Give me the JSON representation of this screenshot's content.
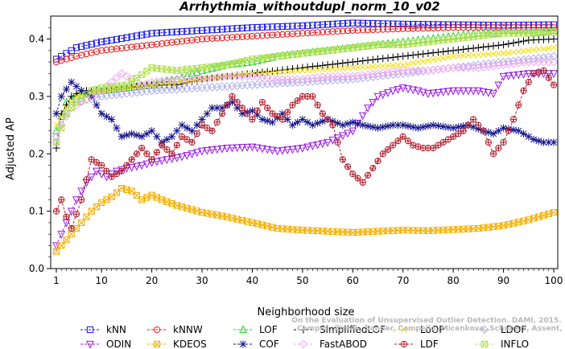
{
  "chart_data": {
    "type": "line",
    "title": "Arrhythmia_withoutdupl_norm_10_v02",
    "xlabel": "Neighborhood size",
    "ylabel": "Adjusted AP",
    "xlim": [
      1,
      100
    ],
    "ylim": [
      0,
      0.44
    ],
    "xticks": [
      "1",
      "10",
      "20",
      "30",
      "40",
      "50",
      "60",
      "70",
      "80",
      "90",
      "100"
    ],
    "yticks": [
      "0.0",
      "0.1",
      "0.2",
      "0.3",
      "0.4"
    ],
    "grid": false,
    "legend_position": "bottom",
    "watermark": {
      "line1": "Campos, Zimek, Sander, Campello, Micenkova, Schubert, Assent, Houle",
      "line2": "On the Evaluation of Unsupervised Outlier Detection. DAMI, 2015."
    },
    "series": [
      {
        "name": "kNN",
        "color": "#1a1ae6",
        "marker": "square",
        "points": [
          [
            1,
            0.365
          ],
          [
            2,
            0.37
          ],
          [
            5,
            0.385
          ],
          [
            10,
            0.395
          ],
          [
            20,
            0.41
          ],
          [
            30,
            0.415
          ],
          [
            40,
            0.42
          ],
          [
            50,
            0.423
          ],
          [
            60,
            0.428
          ],
          [
            70,
            0.426
          ],
          [
            80,
            0.425
          ],
          [
            90,
            0.424
          ],
          [
            100,
            0.425
          ]
        ]
      },
      {
        "name": "kNNW",
        "color": "#e61a1a",
        "marker": "circle",
        "points": [
          [
            1,
            0.36
          ],
          [
            3,
            0.365
          ],
          [
            5,
            0.37
          ],
          [
            10,
            0.38
          ],
          [
            20,
            0.39
          ],
          [
            30,
            0.4
          ],
          [
            40,
            0.405
          ],
          [
            50,
            0.41
          ],
          [
            60,
            0.415
          ],
          [
            70,
            0.418
          ],
          [
            80,
            0.42
          ],
          [
            90,
            0.42
          ],
          [
            100,
            0.42
          ]
        ]
      },
      {
        "name": "LOF",
        "color": "#2ed12e",
        "marker": "triangle",
        "points": [
          [
            1,
            0.24
          ],
          [
            3,
            0.29
          ],
          [
            5,
            0.3
          ],
          [
            10,
            0.31
          ],
          [
            15,
            0.315
          ],
          [
            20,
            0.32
          ],
          [
            25,
            0.33
          ],
          [
            30,
            0.345
          ],
          [
            35,
            0.355
          ],
          [
            40,
            0.36
          ],
          [
            45,
            0.37
          ],
          [
            50,
            0.375
          ],
          [
            55,
            0.38
          ],
          [
            60,
            0.385
          ],
          [
            65,
            0.39
          ],
          [
            70,
            0.395
          ],
          [
            75,
            0.4
          ],
          [
            80,
            0.405
          ],
          [
            85,
            0.41
          ],
          [
            90,
            0.41
          ],
          [
            95,
            0.41
          ],
          [
            100,
            0.415
          ]
        ]
      },
      {
        "name": "SimplifiedLOF",
        "color": "#000000",
        "marker": "plus",
        "points": [
          [
            1,
            0.21
          ],
          [
            2,
            0.27
          ],
          [
            4,
            0.3
          ],
          [
            6,
            0.31
          ],
          [
            10,
            0.31
          ],
          [
            15,
            0.315
          ],
          [
            20,
            0.32
          ],
          [
            25,
            0.32
          ],
          [
            30,
            0.33
          ],
          [
            35,
            0.335
          ],
          [
            40,
            0.34
          ],
          [
            45,
            0.345
          ],
          [
            50,
            0.35
          ],
          [
            55,
            0.355
          ],
          [
            60,
            0.36
          ],
          [
            65,
            0.365
          ],
          [
            70,
            0.37
          ],
          [
            75,
            0.375
          ],
          [
            80,
            0.38
          ],
          [
            85,
            0.385
          ],
          [
            90,
            0.39
          ],
          [
            95,
            0.398
          ],
          [
            100,
            0.4
          ]
        ]
      },
      {
        "name": "LoOP",
        "color": "#f5e010",
        "marker": "cross",
        "points": [
          [
            1,
            0.25
          ],
          [
            3,
            0.28
          ],
          [
            5,
            0.3
          ],
          [
            10,
            0.31
          ],
          [
            20,
            0.32
          ],
          [
            30,
            0.33
          ],
          [
            40,
            0.34
          ],
          [
            50,
            0.345
          ],
          [
            60,
            0.35
          ],
          [
            70,
            0.355
          ],
          [
            80,
            0.37
          ],
          [
            90,
            0.375
          ],
          [
            100,
            0.385
          ]
        ]
      },
      {
        "name": "LDOF",
        "color": "#b0b0ee",
        "marker": "diamond",
        "points": [
          [
            1,
            0.23
          ],
          [
            3,
            0.27
          ],
          [
            5,
            0.29
          ],
          [
            10,
            0.3
          ],
          [
            20,
            0.31
          ],
          [
            30,
            0.315
          ],
          [
            40,
            0.32
          ],
          [
            50,
            0.325
          ],
          [
            60,
            0.33
          ],
          [
            70,
            0.34
          ],
          [
            80,
            0.35
          ],
          [
            90,
            0.36
          ],
          [
            100,
            0.37
          ]
        ]
      },
      {
        "name": "ODIN",
        "color": "#9a1ae6",
        "marker": "triangle-down",
        "points": [
          [
            1,
            0.04
          ],
          [
            2,
            0.06
          ],
          [
            3,
            0.08
          ],
          [
            5,
            0.12
          ],
          [
            7,
            0.15
          ],
          [
            9,
            0.17
          ],
          [
            11,
            0.16
          ],
          [
            13,
            0.17
          ],
          [
            15,
            0.175
          ],
          [
            18,
            0.18
          ],
          [
            20,
            0.185
          ],
          [
            23,
            0.19
          ],
          [
            26,
            0.195
          ],
          [
            30,
            0.205
          ],
          [
            35,
            0.21
          ],
          [
            40,
            0.212
          ],
          [
            45,
            0.205
          ],
          [
            50,
            0.21
          ],
          [
            55,
            0.22
          ],
          [
            60,
            0.24
          ],
          [
            63,
            0.28
          ],
          [
            65,
            0.3
          ],
          [
            68,
            0.31
          ],
          [
            70,
            0.315
          ],
          [
            73,
            0.31
          ],
          [
            75,
            0.305
          ],
          [
            80,
            0.31
          ],
          [
            85,
            0.31
          ],
          [
            88,
            0.305
          ],
          [
            90,
            0.335
          ],
          [
            95,
            0.34
          ],
          [
            100,
            0.34
          ]
        ]
      },
      {
        "name": "KDEOS",
        "color": "#f5b000",
        "marker": "square-x",
        "points": [
          [
            1,
            0.03
          ],
          [
            2,
            0.04
          ],
          [
            4,
            0.06
          ],
          [
            6,
            0.08
          ],
          [
            8,
            0.1
          ],
          [
            10,
            0.115
          ],
          [
            12,
            0.125
          ],
          [
            14,
            0.14
          ],
          [
            16,
            0.135
          ],
          [
            18,
            0.12
          ],
          [
            20,
            0.128
          ],
          [
            22,
            0.12
          ],
          [
            25,
            0.11
          ],
          [
            30,
            0.098
          ],
          [
            35,
            0.09
          ],
          [
            40,
            0.08
          ],
          [
            45,
            0.07
          ],
          [
            50,
            0.067
          ],
          [
            55,
            0.065
          ],
          [
            60,
            0.063
          ],
          [
            65,
            0.065
          ],
          [
            70,
            0.067
          ],
          [
            75,
            0.066
          ],
          [
            80,
            0.068
          ],
          [
            85,
            0.07
          ],
          [
            90,
            0.075
          ],
          [
            95,
            0.085
          ],
          [
            100,
            0.098
          ]
        ]
      },
      {
        "name": "COF",
        "color": "#14148c",
        "marker": "star",
        "points": [
          [
            1,
            0.27
          ],
          [
            2,
            0.3
          ],
          [
            4,
            0.325
          ],
          [
            6,
            0.31
          ],
          [
            8,
            0.3
          ],
          [
            10,
            0.27
          ],
          [
            12,
            0.26
          ],
          [
            14,
            0.23
          ],
          [
            16,
            0.235
          ],
          [
            18,
            0.23
          ],
          [
            20,
            0.24
          ],
          [
            22,
            0.22
          ],
          [
            24,
            0.23
          ],
          [
            26,
            0.25
          ],
          [
            28,
            0.24
          ],
          [
            30,
            0.26
          ],
          [
            32,
            0.28
          ],
          [
            34,
            0.28
          ],
          [
            36,
            0.29
          ],
          [
            38,
            0.27
          ],
          [
            40,
            0.275
          ],
          [
            42,
            0.26
          ],
          [
            44,
            0.255
          ],
          [
            46,
            0.27
          ],
          [
            48,
            0.25
          ],
          [
            50,
            0.26
          ],
          [
            52,
            0.25
          ],
          [
            55,
            0.26
          ],
          [
            58,
            0.25
          ],
          [
            60,
            0.255
          ],
          [
            62,
            0.25
          ],
          [
            65,
            0.245
          ],
          [
            68,
            0.25
          ],
          [
            70,
            0.25
          ],
          [
            73,
            0.245
          ],
          [
            76,
            0.25
          ],
          [
            80,
            0.245
          ],
          [
            83,
            0.25
          ],
          [
            86,
            0.24
          ],
          [
            88,
            0.235
          ],
          [
            90,
            0.245
          ],
          [
            93,
            0.24
          ],
          [
            96,
            0.225
          ],
          [
            98,
            0.22
          ],
          [
            100,
            0.22
          ]
        ]
      },
      {
        "name": "FastABOD",
        "color": "#f0a8f0",
        "marker": "diamond",
        "points": [
          [
            1,
            0.22
          ],
          [
            2,
            0.25
          ],
          [
            4,
            0.28
          ],
          [
            6,
            0.29
          ],
          [
            8,
            0.3
          ],
          [
            10,
            0.31
          ],
          [
            12,
            0.325
          ],
          [
            14,
            0.34
          ],
          [
            16,
            0.33
          ],
          [
            18,
            0.32
          ],
          [
            20,
            0.325
          ],
          [
            25,
            0.33
          ],
          [
            30,
            0.33
          ],
          [
            35,
            0.335
          ],
          [
            40,
            0.335
          ],
          [
            45,
            0.33
          ],
          [
            50,
            0.33
          ],
          [
            55,
            0.335
          ],
          [
            60,
            0.335
          ],
          [
            65,
            0.34
          ],
          [
            70,
            0.345
          ],
          [
            75,
            0.345
          ],
          [
            80,
            0.35
          ],
          [
            85,
            0.35
          ],
          [
            90,
            0.355
          ],
          [
            95,
            0.36
          ],
          [
            100,
            0.36
          ]
        ]
      },
      {
        "name": "LDF",
        "color": "#b01c2c",
        "marker": "circle-plus",
        "points": [
          [
            1,
            0.1
          ],
          [
            2,
            0.12
          ],
          [
            3,
            0.09
          ],
          [
            4,
            0.07
          ],
          [
            6,
            0.12
          ],
          [
            8,
            0.19
          ],
          [
            10,
            0.18
          ],
          [
            12,
            0.16
          ],
          [
            14,
            0.17
          ],
          [
            16,
            0.19
          ],
          [
            18,
            0.21
          ],
          [
            20,
            0.19
          ],
          [
            22,
            0.215
          ],
          [
            24,
            0.2
          ],
          [
            26,
            0.23
          ],
          [
            28,
            0.22
          ],
          [
            30,
            0.25
          ],
          [
            32,
            0.24
          ],
          [
            34,
            0.27
          ],
          [
            36,
            0.3
          ],
          [
            38,
            0.28
          ],
          [
            40,
            0.26
          ],
          [
            42,
            0.29
          ],
          [
            44,
            0.27
          ],
          [
            46,
            0.26
          ],
          [
            48,
            0.285
          ],
          [
            50,
            0.3
          ],
          [
            52,
            0.3
          ],
          [
            54,
            0.27
          ],
          [
            56,
            0.25
          ],
          [
            58,
            0.19
          ],
          [
            60,
            0.165
          ],
          [
            62,
            0.15
          ],
          [
            64,
            0.175
          ],
          [
            66,
            0.2
          ],
          [
            68,
            0.215
          ],
          [
            70,
            0.23
          ],
          [
            72,
            0.215
          ],
          [
            74,
            0.21
          ],
          [
            76,
            0.21
          ],
          [
            78,
            0.22
          ],
          [
            80,
            0.23
          ],
          [
            82,
            0.24
          ],
          [
            84,
            0.26
          ],
          [
            86,
            0.24
          ],
          [
            88,
            0.2
          ],
          [
            90,
            0.22
          ],
          [
            92,
            0.26
          ],
          [
            94,
            0.31
          ],
          [
            96,
            0.34
          ],
          [
            98,
            0.345
          ],
          [
            100,
            0.32
          ]
        ]
      },
      {
        "name": "INFLO",
        "color": "#b0e050",
        "marker": "square-x",
        "points": [
          [
            1,
            0.22
          ],
          [
            3,
            0.27
          ],
          [
            5,
            0.29
          ],
          [
            8,
            0.31
          ],
          [
            10,
            0.315
          ],
          [
            15,
            0.32
          ],
          [
            20,
            0.35
          ],
          [
            25,
            0.345
          ],
          [
            30,
            0.35
          ],
          [
            35,
            0.355
          ],
          [
            40,
            0.365
          ],
          [
            45,
            0.37
          ],
          [
            50,
            0.375
          ],
          [
            55,
            0.38
          ],
          [
            60,
            0.385
          ],
          [
            65,
            0.39
          ],
          [
            70,
            0.39
          ],
          [
            75,
            0.395
          ],
          [
            80,
            0.4
          ],
          [
            85,
            0.405
          ],
          [
            90,
            0.41
          ],
          [
            95,
            0.41
          ],
          [
            100,
            0.412
          ]
        ]
      }
    ]
  }
}
